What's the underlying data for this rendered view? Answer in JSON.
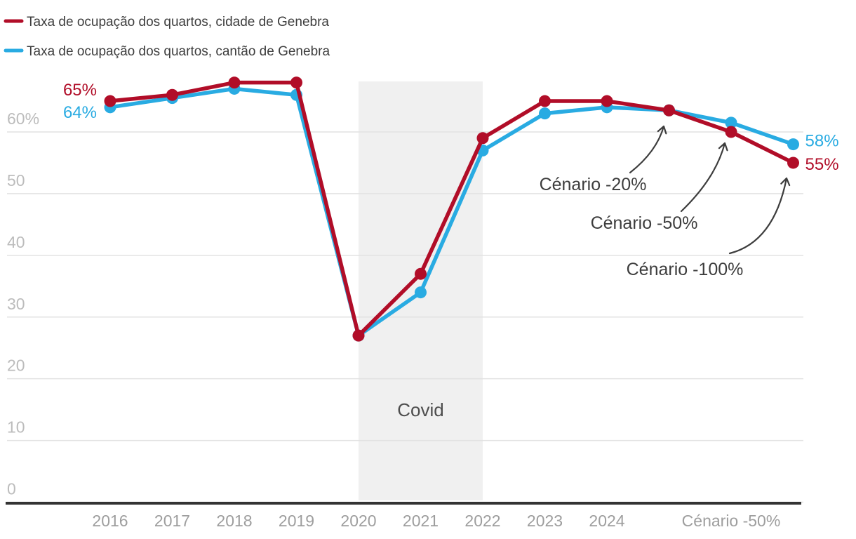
{
  "legend": {
    "items": [
      {
        "label": "Taxa de ocupação dos quartos, cidade de Genebra",
        "color": "#b10d28"
      },
      {
        "label": "Taxa de ocupação dos quartos, cantão de Genebra",
        "color": "#29abe2"
      }
    ]
  },
  "chart_data": {
    "type": "line",
    "categories": [
      "2016",
      "2017",
      "2018",
      "2019",
      "2020",
      "2021",
      "2022",
      "2023",
      "2024",
      "Cénario -20%",
      "Cénario -50%",
      "Cénario -100%"
    ],
    "x_tick_labels": [
      "2016",
      "2017",
      "2018",
      "2019",
      "2020",
      "2021",
      "2022",
      "2023",
      "2024",
      "",
      "Cénario -50%",
      ""
    ],
    "series": [
      {
        "name": "Taxa de ocupação dos quartos, cidade de Genebra",
        "color": "#b10d28",
        "values": [
          65,
          66,
          68,
          68,
          27,
          37,
          59,
          65,
          65,
          63.5,
          60,
          55
        ],
        "start_label": "65%",
        "end_label": "55%"
      },
      {
        "name": "Taxa de ocupação dos quartos, cantão de Genebra",
        "color": "#29abe2",
        "values": [
          64,
          65.5,
          67,
          66,
          27,
          34,
          57,
          63,
          64,
          63.5,
          61.5,
          58
        ],
        "start_label": "64%",
        "end_label": "58%"
      }
    ],
    "ylim": [
      0,
      70
    ],
    "y_ticks": [
      {
        "value": 60,
        "label": "60%"
      },
      {
        "value": 50,
        "label": "50"
      },
      {
        "value": 40,
        "label": "40"
      },
      {
        "value": 30,
        "label": "30"
      },
      {
        "value": 20,
        "label": "20"
      },
      {
        "value": 10,
        "label": "10"
      },
      {
        "value": 0,
        "label": "0"
      }
    ],
    "grid": true,
    "legend_position": "top-left",
    "covid_band": {
      "label": "Covid",
      "from_category": "2020",
      "to_category": "2022"
    },
    "annotations": [
      {
        "text": "Cénario -20%",
        "target_category": "Cénario -20%"
      },
      {
        "text": "Cénario -50%",
        "target_category": "Cénario -50%"
      },
      {
        "text": "Cénario -100%",
        "target_category": "Cénario -100%"
      }
    ]
  },
  "colors": {
    "band": "#f0f0f0",
    "gridline": "#e2e2e2",
    "axis": "#333333",
    "y_label": "#bcbcbc",
    "x_label": "#9e9e9e",
    "annotation": "#3d3d3d",
    "covid_text": "#4d4d4d",
    "background": "#ffffff"
  }
}
